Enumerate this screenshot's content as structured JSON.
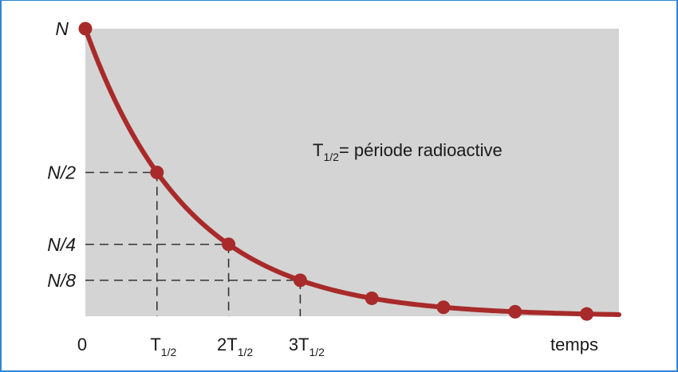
{
  "chart_data": {
    "type": "line",
    "title": "",
    "xlabel": "temps",
    "ylabel": "N",
    "annotation": {
      "main": "T",
      "sub": "1/2",
      "rest": "= période radioactive"
    },
    "x_ticks": [
      {
        "main": "0",
        "sub": "",
        "value": 0
      },
      {
        "main": "T",
        "sub": "1/2",
        "value": 1
      },
      {
        "main": "2T",
        "sub": "1/2",
        "value": 2
      },
      {
        "main": "3T",
        "sub": "1/2",
        "value": 3
      }
    ],
    "y_ticks": [
      {
        "label": "N",
        "value": 1
      },
      {
        "label": "N/2",
        "value": 0.5
      },
      {
        "label": "N/4",
        "value": 0.25
      },
      {
        "label": "N/8",
        "value": 0.125
      }
    ],
    "points_x": [
      0,
      1,
      2,
      3,
      4,
      5,
      6,
      7
    ],
    "points_y": [
      1,
      0.5,
      0.25,
      0.125,
      0.0625,
      0.03125,
      0.015625,
      0.0078125
    ],
    "curve_x_max": 7.45,
    "xlim": [
      0,
      7.45
    ],
    "ylim": [
      0,
      1
    ],
    "colors": {
      "plot_bg": "#d4d4d4",
      "curve": "#a82a2a",
      "dash": "#333333",
      "frame": "#2f86d6"
    },
    "grid": false
  }
}
